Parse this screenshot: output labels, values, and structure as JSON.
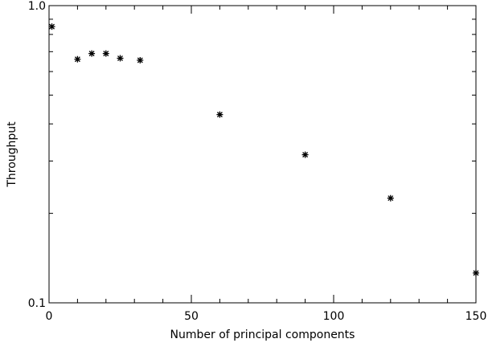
{
  "chart_data": {
    "type": "scatter",
    "title": "",
    "xlabel": "Number of principal components",
    "ylabel": "Throughput",
    "x_scale": "linear",
    "y_scale": "log",
    "xlim": [
      0,
      150
    ],
    "ylim": [
      0.1,
      1.0
    ],
    "grid": false,
    "legend": "none",
    "marker": "asterisk",
    "x_ticks": [
      0,
      50,
      100,
      150
    ],
    "x_tick_labels": [
      "0",
      "50",
      "100",
      "150"
    ],
    "y_tick_labels": {
      "0.1": "0.1",
      "1.0": "1.0"
    },
    "series": [
      {
        "x": [
          1,
          10,
          15,
          20,
          25,
          32,
          60,
          90,
          120,
          150
        ],
        "y": [
          0.85,
          0.66,
          0.69,
          0.69,
          0.665,
          0.655,
          0.43,
          0.315,
          0.225,
          0.126
        ]
      }
    ],
    "colors": {
      "axis": "#000000",
      "marker": "#000000",
      "background": "#ffffff"
    }
  }
}
